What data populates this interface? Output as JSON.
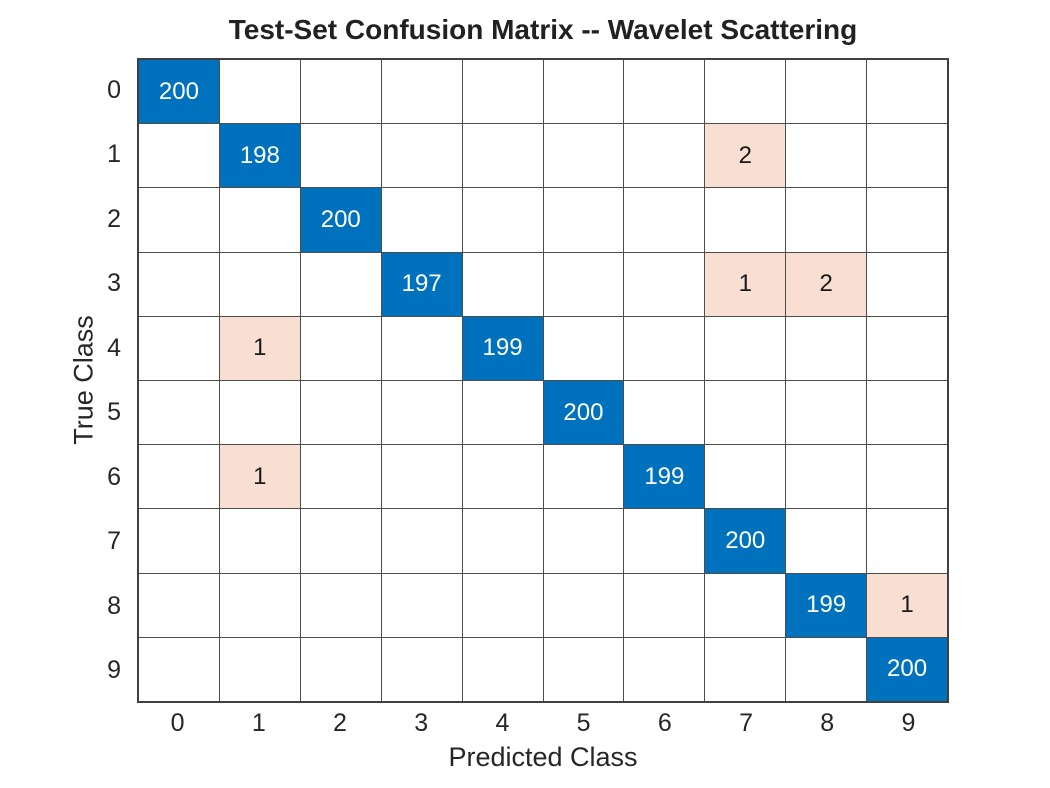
{
  "chart_data": {
    "type": "heatmap",
    "subtype": "confusion-matrix",
    "title": "Test-Set Confusion Matrix -- Wavelet Scattering",
    "xlabel": "Predicted Class",
    "ylabel": "True Class",
    "x_categories": [
      "0",
      "1",
      "2",
      "3",
      "4",
      "5",
      "6",
      "7",
      "8",
      "9"
    ],
    "y_categories": [
      "0",
      "1",
      "2",
      "3",
      "4",
      "5",
      "6",
      "7",
      "8",
      "9"
    ],
    "matrix": [
      [
        200,
        0,
        0,
        0,
        0,
        0,
        0,
        0,
        0,
        0
      ],
      [
        0,
        198,
        0,
        0,
        0,
        0,
        0,
        2,
        0,
        0
      ],
      [
        0,
        0,
        200,
        0,
        0,
        0,
        0,
        0,
        0,
        0
      ],
      [
        0,
        0,
        0,
        197,
        0,
        0,
        0,
        1,
        2,
        0
      ],
      [
        0,
        1,
        0,
        0,
        199,
        0,
        0,
        0,
        0,
        0
      ],
      [
        0,
        0,
        0,
        0,
        0,
        200,
        0,
        0,
        0,
        0
      ],
      [
        0,
        1,
        0,
        0,
        0,
        0,
        199,
        0,
        0,
        0
      ],
      [
        0,
        0,
        0,
        0,
        0,
        0,
        0,
        200,
        0,
        0
      ],
      [
        0,
        0,
        0,
        0,
        0,
        0,
        0,
        0,
        199,
        1
      ],
      [
        0,
        0,
        0,
        0,
        0,
        0,
        0,
        0,
        0,
        200
      ]
    ],
    "grid": true,
    "legend": "none",
    "colors": {
      "diagonal_fill": "#0072BD",
      "offdiagonal_fill": "#F8DFD1",
      "empty_fill": "#FFFFFF",
      "diagonal_text": "#FFFFFF",
      "offdiagonal_text": "#1A1A1A",
      "gridline": "#4D4D4D",
      "axis_text": "#262626",
      "title_text": "#212121"
    }
  }
}
